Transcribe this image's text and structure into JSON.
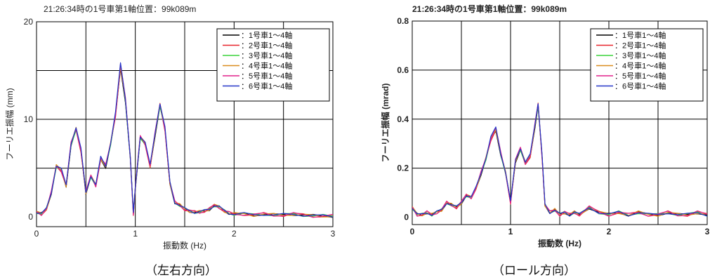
{
  "chart_data": [
    {
      "type": "line",
      "title": "21:26:34時の1号車第1軸位置：99k089m",
      "xlabel": "振動数 (Hz)",
      "ylabel": "フーリエ振幅 (mm)",
      "xlim": [
        0,
        3
      ],
      "ylim": [
        -1,
        20
      ],
      "x_ticks": [
        "0",
        "1",
        "2",
        "3"
      ],
      "y_ticks": [
        "0",
        "10",
        "20"
      ],
      "grid": true,
      "legend_position": "top-right",
      "series": [
        {
          "name": "：1号車1～4軸",
          "color": "#000000"
        },
        {
          "name": "：2号車1～4軸",
          "color": "#e8262d"
        },
        {
          "name": "：3号車1～4軸",
          "color": "#3bd43b"
        },
        {
          "name": "：4号車1～4軸",
          "color": "#d98c1f"
        },
        {
          "name": "：5号車1～4軸",
          "color": "#e0218a"
        },
        {
          "name": "：6号車1～4軸",
          "color": "#2233c8"
        }
      ],
      "x": [
        0,
        0.05,
        0.1,
        0.15,
        0.2,
        0.25,
        0.3,
        0.35,
        0.4,
        0.45,
        0.5,
        0.55,
        0.6,
        0.65,
        0.7,
        0.75,
        0.8,
        0.85,
        0.9,
        0.95,
        0.98,
        1.0,
        1.05,
        1.1,
        1.15,
        1.2,
        1.25,
        1.3,
        1.35,
        1.4,
        1.45,
        1.5,
        1.55,
        1.6,
        1.65,
        1.7,
        1.75,
        1.8,
        1.85,
        1.9,
        1.95,
        2.0,
        2.1,
        2.2,
        2.3,
        2.4,
        2.5,
        2.6,
        2.7,
        2.8,
        2.9,
        3.0
      ],
      "y": [
        0.5,
        0.3,
        0.8,
        2.5,
        5.2,
        4.8,
        3.2,
        7.5,
        9.0,
        6.8,
        2.5,
        4.2,
        3.2,
        6.0,
        5.2,
        7.5,
        10.5,
        15.5,
        12.0,
        6.0,
        0.3,
        3.0,
        8.2,
        7.5,
        5.2,
        8.5,
        11.5,
        9.0,
        3.5,
        1.5,
        1.2,
        0.8,
        0.6,
        0.5,
        0.5,
        0.6,
        0.8,
        1.2,
        1.0,
        0.6,
        0.4,
        0.3,
        0.3,
        0.2,
        0.3,
        0.2,
        0.2,
        0.3,
        0.2,
        0.1,
        0.1,
        0.1
      ]
    },
    {
      "type": "line",
      "title": "21:26:34時の1号車第1軸位置：99k089m",
      "xlabel": "振動数 (Hz)",
      "ylabel": "フーリエ振幅 (mrad)",
      "xlim": [
        0,
        3
      ],
      "ylim": [
        -0.03,
        0.8
      ],
      "x_ticks": [
        "0",
        "1",
        "2",
        "3"
      ],
      "y_ticks": [
        "0",
        "0.2",
        "0.4",
        "0.6",
        "0.8"
      ],
      "grid": true,
      "legend_position": "top-right",
      "series": [
        {
          "name": "：1号車1～4軸",
          "color": "#000000"
        },
        {
          "name": "：2号車1～4軸",
          "color": "#e8262d"
        },
        {
          "name": "：3号車1～4軸",
          "color": "#3bd43b"
        },
        {
          "name": "：4号車1～4軸",
          "color": "#d98c1f"
        },
        {
          "name": "：5号車1～4軸",
          "color": "#e0218a"
        },
        {
          "name": "：6号車1～4軸",
          "color": "#2233c8"
        }
      ],
      "x": [
        0,
        0.05,
        0.1,
        0.15,
        0.2,
        0.25,
        0.3,
        0.35,
        0.4,
        0.45,
        0.5,
        0.55,
        0.6,
        0.65,
        0.7,
        0.75,
        0.8,
        0.85,
        0.9,
        0.95,
        1.0,
        1.05,
        1.1,
        1.15,
        1.2,
        1.25,
        1.28,
        1.32,
        1.35,
        1.4,
        1.45,
        1.5,
        1.55,
        1.6,
        1.65,
        1.7,
        1.8,
        1.9,
        2.0,
        2.1,
        2.2,
        2.3,
        2.4,
        2.5,
        2.6,
        2.7,
        2.8,
        2.9,
        3.0
      ],
      "y": [
        0.04,
        0.01,
        0.01,
        0.02,
        0.01,
        0.02,
        0.03,
        0.06,
        0.05,
        0.04,
        0.06,
        0.09,
        0.08,
        0.12,
        0.18,
        0.24,
        0.32,
        0.36,
        0.26,
        0.18,
        0.06,
        0.23,
        0.28,
        0.22,
        0.25,
        0.38,
        0.46,
        0.25,
        0.05,
        0.02,
        0.03,
        0.01,
        0.02,
        0.01,
        0.02,
        0.01,
        0.04,
        0.02,
        0.01,
        0.02,
        0.01,
        0.02,
        0.01,
        0.01,
        0.02,
        0.01,
        0.01,
        0.02,
        0.01
      ]
    }
  ],
  "captions": {
    "left": "（左右方向）",
    "right": "（ロール方向）"
  }
}
